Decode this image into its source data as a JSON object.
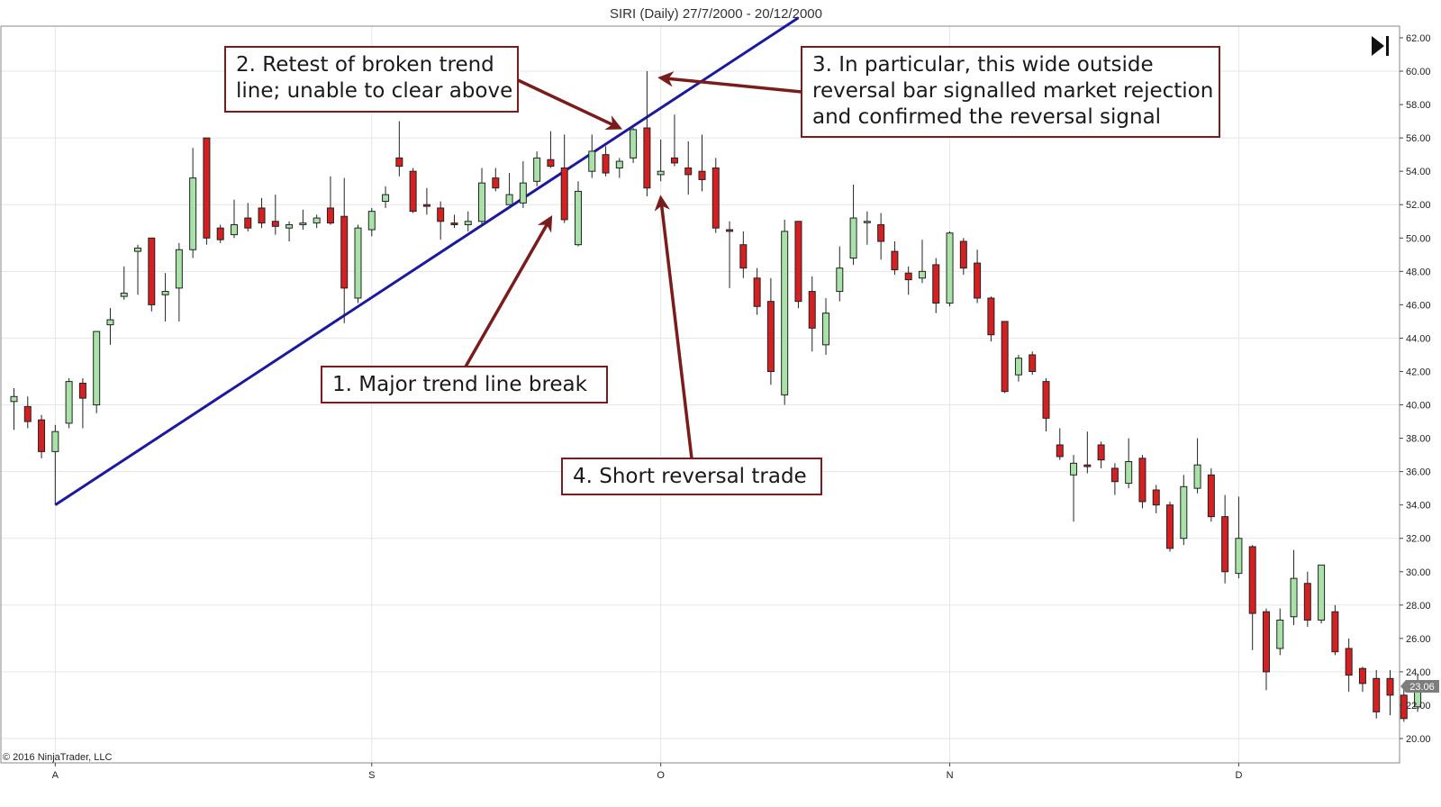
{
  "chart_data": {
    "type": "candlestick",
    "title": "SIRI (Daily)  27/7/2000 - 20/12/2000",
    "ylim": [
      19,
      62.6
    ],
    "yticks": [
      20,
      22,
      24,
      26,
      28,
      30,
      32,
      34,
      36,
      38,
      40,
      42,
      44,
      46,
      48,
      50,
      52,
      54,
      56,
      58,
      60,
      62
    ],
    "ytick_labels": [
      "20.00",
      "22.00",
      "24.00",
      "26.00",
      "28.00",
      "30.00",
      "32.00",
      "34.00",
      "36.00",
      "38.00",
      "40.00",
      "42.00",
      "44.00",
      "46.00",
      "48.00",
      "50.00",
      "52.00",
      "54.00",
      "56.00",
      "58.00",
      "60.00",
      "62.00"
    ],
    "xaxis": {
      "labels": [
        {
          "label": "A",
          "index": 3
        },
        {
          "label": "S",
          "index": 26
        },
        {
          "label": "O",
          "index": 47
        },
        {
          "label": "N",
          "index": 68
        },
        {
          "label": "D",
          "index": 89
        }
      ]
    },
    "grid": true,
    "up_color": "#a8e2a8",
    "down_color": "#d42020",
    "trendline_color": "#1a1aa0",
    "annotation_color": "#7a1c1c",
    "last_price": "23.06",
    "copyright": "© 2016 NinjaTrader, LLC",
    "candles": [
      {
        "o": 40.2,
        "h": 41.0,
        "l": 38.5,
        "c": 40.5
      },
      {
        "o": 39.9,
        "h": 40.5,
        "l": 38.6,
        "c": 39.0
      },
      {
        "o": 39.1,
        "h": 39.4,
        "l": 36.8,
        "c": 37.2
      },
      {
        "o": 37.2,
        "h": 38.8,
        "l": 34.0,
        "c": 38.4
      },
      {
        "o": 38.9,
        "h": 41.6,
        "l": 38.6,
        "c": 41.4
      },
      {
        "o": 41.3,
        "h": 41.6,
        "l": 38.6,
        "c": 40.4
      },
      {
        "o": 40.0,
        "h": 44.4,
        "l": 39.5,
        "c": 44.4
      },
      {
        "o": 44.8,
        "h": 45.8,
        "l": 43.6,
        "c": 45.1
      },
      {
        "o": 46.5,
        "h": 48.3,
        "l": 46.3,
        "c": 46.7
      },
      {
        "o": 49.2,
        "h": 49.6,
        "l": 46.6,
        "c": 49.4
      },
      {
        "o": 50.0,
        "h": 50.0,
        "l": 45.6,
        "c": 46.0
      },
      {
        "o": 46.6,
        "h": 47.9,
        "l": 45.0,
        "c": 46.8
      },
      {
        "o": 47.0,
        "h": 49.7,
        "l": 45.0,
        "c": 49.3
      },
      {
        "o": 49.3,
        "h": 55.4,
        "l": 48.8,
        "c": 53.6
      },
      {
        "o": 56.0,
        "h": 56.0,
        "l": 49.6,
        "c": 50.0
      },
      {
        "o": 50.6,
        "h": 50.8,
        "l": 49.7,
        "c": 49.9
      },
      {
        "o": 50.2,
        "h": 52.3,
        "l": 50.0,
        "c": 50.8
      },
      {
        "o": 51.2,
        "h": 52.1,
        "l": 50.4,
        "c": 50.6
      },
      {
        "o": 51.8,
        "h": 52.4,
        "l": 50.6,
        "c": 50.9
      },
      {
        "o": 51.0,
        "h": 52.6,
        "l": 50.2,
        "c": 50.7
      },
      {
        "o": 50.6,
        "h": 51.0,
        "l": 49.8,
        "c": 50.8
      },
      {
        "o": 50.8,
        "h": 51.7,
        "l": 50.5,
        "c": 50.9
      },
      {
        "o": 50.9,
        "h": 51.4,
        "l": 50.6,
        "c": 51.2
      },
      {
        "o": 51.8,
        "h": 53.7,
        "l": 50.8,
        "c": 50.9
      },
      {
        "o": 51.3,
        "h": 53.6,
        "l": 44.9,
        "c": 47.0
      },
      {
        "o": 46.4,
        "h": 50.8,
        "l": 46.1,
        "c": 50.6
      },
      {
        "o": 50.5,
        "h": 51.8,
        "l": 50.1,
        "c": 51.6
      },
      {
        "o": 52.2,
        "h": 53.1,
        "l": 51.8,
        "c": 52.6
      },
      {
        "o": 54.8,
        "h": 57.0,
        "l": 53.7,
        "c": 54.3
      },
      {
        "o": 54.0,
        "h": 54.2,
        "l": 51.5,
        "c": 51.6
      },
      {
        "o": 52.0,
        "h": 53.0,
        "l": 51.4,
        "c": 51.9
      },
      {
        "o": 51.8,
        "h": 52.2,
        "l": 49.9,
        "c": 51.0
      },
      {
        "o": 50.9,
        "h": 51.4,
        "l": 50.6,
        "c": 50.8
      },
      {
        "o": 50.8,
        "h": 51.6,
        "l": 50.4,
        "c": 51.0
      },
      {
        "o": 51.0,
        "h": 54.2,
        "l": 50.7,
        "c": 53.3
      },
      {
        "o": 53.6,
        "h": 54.2,
        "l": 52.8,
        "c": 53.0
      },
      {
        "o": 52.0,
        "h": 53.9,
        "l": 52.0,
        "c": 52.6
      },
      {
        "o": 52.1,
        "h": 54.6,
        "l": 51.8,
        "c": 53.3
      },
      {
        "o": 53.4,
        "h": 55.2,
        "l": 53.1,
        "c": 54.8
      },
      {
        "o": 54.7,
        "h": 56.4,
        "l": 54.2,
        "c": 54.3
      },
      {
        "o": 54.2,
        "h": 56.2,
        "l": 50.9,
        "c": 51.1
      },
      {
        "o": 49.6,
        "h": 53.4,
        "l": 49.5,
        "c": 52.8
      },
      {
        "o": 54.0,
        "h": 56.2,
        "l": 53.6,
        "c": 55.2
      },
      {
        "o": 55.0,
        "h": 55.5,
        "l": 53.7,
        "c": 53.9
      },
      {
        "o": 54.2,
        "h": 54.8,
        "l": 53.6,
        "c": 54.6
      },
      {
        "o": 54.8,
        "h": 56.6,
        "l": 54.5,
        "c": 56.5
      },
      {
        "o": 56.6,
        "h": 60.0,
        "l": 52.5,
        "c": 53.0
      },
      {
        "o": 53.8,
        "h": 55.9,
        "l": 53.4,
        "c": 54.0
      },
      {
        "o": 54.8,
        "h": 57.4,
        "l": 54.3,
        "c": 54.5
      },
      {
        "o": 54.2,
        "h": 55.8,
        "l": 52.6,
        "c": 53.8
      },
      {
        "o": 54.0,
        "h": 56.2,
        "l": 52.8,
        "c": 53.5
      },
      {
        "o": 54.2,
        "h": 54.8,
        "l": 50.3,
        "c": 50.6
      },
      {
        "o": 50.5,
        "h": 51.0,
        "l": 47.0,
        "c": 50.4
      },
      {
        "o": 49.6,
        "h": 50.4,
        "l": 47.6,
        "c": 48.2
      },
      {
        "o": 47.6,
        "h": 48.2,
        "l": 45.4,
        "c": 45.9
      },
      {
        "o": 46.2,
        "h": 47.6,
        "l": 41.2,
        "c": 42.0
      },
      {
        "o": 40.6,
        "h": 51.1,
        "l": 40.0,
        "c": 50.4
      },
      {
        "o": 51.0,
        "h": 51.0,
        "l": 45.8,
        "c": 46.2
      },
      {
        "o": 46.8,
        "h": 47.7,
        "l": 43.2,
        "c": 44.6
      },
      {
        "o": 43.6,
        "h": 46.4,
        "l": 43.0,
        "c": 45.5
      },
      {
        "o": 46.8,
        "h": 49.5,
        "l": 46.2,
        "c": 48.2
      },
      {
        "o": 48.8,
        "h": 53.2,
        "l": 48.4,
        "c": 51.2
      },
      {
        "o": 51.0,
        "h": 51.6,
        "l": 49.6,
        "c": 51.0
      },
      {
        "o": 50.8,
        "h": 51.5,
        "l": 48.7,
        "c": 49.8
      },
      {
        "o": 49.2,
        "h": 49.8,
        "l": 47.8,
        "c": 48.1
      },
      {
        "o": 47.9,
        "h": 48.3,
        "l": 46.6,
        "c": 47.5
      },
      {
        "o": 47.6,
        "h": 49.9,
        "l": 47.3,
        "c": 48.0
      },
      {
        "o": 48.4,
        "h": 48.8,
        "l": 45.5,
        "c": 46.1
      },
      {
        "o": 46.1,
        "h": 50.4,
        "l": 45.9,
        "c": 50.3
      },
      {
        "o": 49.8,
        "h": 50.0,
        "l": 47.8,
        "c": 48.2
      },
      {
        "o": 48.5,
        "h": 49.3,
        "l": 46.1,
        "c": 46.4
      },
      {
        "o": 46.4,
        "h": 46.5,
        "l": 43.8,
        "c": 44.2
      },
      {
        "o": 45.0,
        "h": 45.0,
        "l": 40.7,
        "c": 40.8
      },
      {
        "o": 41.8,
        "h": 43.0,
        "l": 41.4,
        "c": 42.8
      },
      {
        "o": 43.0,
        "h": 43.2,
        "l": 41.8,
        "c": 42.0
      },
      {
        "o": 41.4,
        "h": 41.6,
        "l": 38.4,
        "c": 39.2
      },
      {
        "o": 37.6,
        "h": 38.6,
        "l": 36.7,
        "c": 36.9
      },
      {
        "o": 35.8,
        "h": 37.0,
        "l": 33.0,
        "c": 36.5
      },
      {
        "o": 36.4,
        "h": 38.4,
        "l": 35.9,
        "c": 36.3
      },
      {
        "o": 37.6,
        "h": 37.8,
        "l": 36.2,
        "c": 36.7
      },
      {
        "o": 36.2,
        "h": 36.5,
        "l": 34.6,
        "c": 35.4
      },
      {
        "o": 35.3,
        "h": 38.0,
        "l": 35.0,
        "c": 36.6
      },
      {
        "o": 36.8,
        "h": 37.0,
        "l": 33.8,
        "c": 34.2
      },
      {
        "o": 34.9,
        "h": 35.2,
        "l": 33.5,
        "c": 34.0
      },
      {
        "o": 34.0,
        "h": 34.2,
        "l": 31.2,
        "c": 31.4
      },
      {
        "o": 32.0,
        "h": 35.8,
        "l": 31.6,
        "c": 35.1
      },
      {
        "o": 35.0,
        "h": 38.0,
        "l": 34.7,
        "c": 36.4
      },
      {
        "o": 35.8,
        "h": 36.2,
        "l": 33.0,
        "c": 33.3
      },
      {
        "o": 33.3,
        "h": 34.6,
        "l": 29.3,
        "c": 30.0
      },
      {
        "o": 29.9,
        "h": 34.5,
        "l": 29.6,
        "c": 32.0
      },
      {
        "o": 31.5,
        "h": 31.6,
        "l": 25.3,
        "c": 27.5
      },
      {
        "o": 27.6,
        "h": 27.8,
        "l": 22.9,
        "c": 24.0
      },
      {
        "o": 25.4,
        "h": 27.8,
        "l": 25.0,
        "c": 27.1
      },
      {
        "o": 27.3,
        "h": 31.3,
        "l": 26.8,
        "c": 29.6
      },
      {
        "o": 29.3,
        "h": 30.0,
        "l": 26.7,
        "c": 27.1
      },
      {
        "o": 27.1,
        "h": 30.4,
        "l": 26.9,
        "c": 30.4
      },
      {
        "o": 27.6,
        "h": 28.0,
        "l": 25.0,
        "c": 25.2
      },
      {
        "o": 25.4,
        "h": 26.0,
        "l": 22.8,
        "c": 23.8
      },
      {
        "o": 24.2,
        "h": 24.3,
        "l": 22.8,
        "c": 23.3
      },
      {
        "o": 23.6,
        "h": 24.1,
        "l": 21.2,
        "c": 21.6
      },
      {
        "o": 23.6,
        "h": 24.1,
        "l": 21.4,
        "c": 22.6
      },
      {
        "o": 22.6,
        "h": 23.1,
        "l": 21.0,
        "c": 21.2
      },
      {
        "o": 21.9,
        "h": 23.9,
        "l": 21.6,
        "c": 23.1
      }
    ],
    "trendline": {
      "from": {
        "index": 3,
        "price": 34.0
      },
      "to": {
        "index": 57,
        "price": 63.2
      }
    },
    "annotations": [
      {
        "id": "ann-2",
        "lines": [
          "2. Retest of broken trend",
          "line; unable to clear above"
        ],
        "arrow_to": {
          "index": 44,
          "price": 56.6
        }
      },
      {
        "id": "ann-3",
        "lines": [
          "3. In particular, this wide outside",
          "reversal bar signalled market rejection",
          "and confirmed the reversal signal"
        ],
        "arrow_to": {
          "index": 47,
          "price": 59.6
        }
      },
      {
        "id": "ann-1",
        "lines": [
          "1. Major trend line break"
        ],
        "arrow_to": {
          "index": 39,
          "price": 51.2
        }
      },
      {
        "id": "ann-4",
        "lines": [
          "4. Short reversal trade"
        ],
        "arrow_to": {
          "index": 47,
          "price": 52.4
        }
      }
    ]
  }
}
